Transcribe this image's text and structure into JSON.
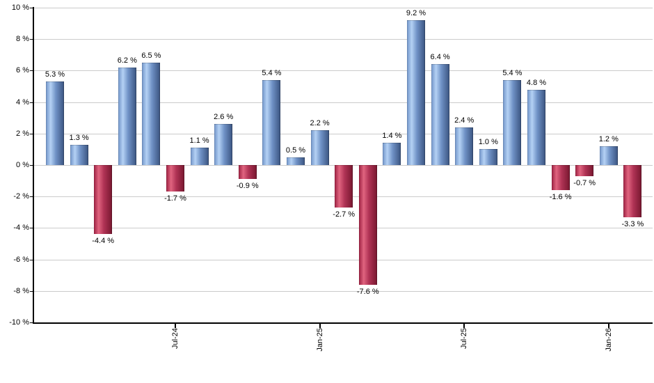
{
  "chart_data": {
    "type": "bar",
    "title": "",
    "xlabel": "",
    "ylabel": "",
    "grid": true,
    "legend_position": "none",
    "ylim": [
      -10,
      10
    ],
    "y_ticks": [
      {
        "value": 10,
        "label": "10 %"
      },
      {
        "value": 8,
        "label": "8 %"
      },
      {
        "value": 6,
        "label": "6 %"
      },
      {
        "value": 4,
        "label": "4 %"
      },
      {
        "value": 2,
        "label": "2 %"
      },
      {
        "value": 0,
        "label": "0 %"
      },
      {
        "value": -2,
        "label": "-2 %"
      },
      {
        "value": -4,
        "label": "-4 %"
      },
      {
        "value": -6,
        "label": "-6 %"
      },
      {
        "value": -8,
        "label": "-8 %"
      },
      {
        "value": -10,
        "label": "-10 %"
      }
    ],
    "values": [
      5.3,
      1.3,
      -4.4,
      6.2,
      6.5,
      -1.7,
      1.1,
      2.6,
      -0.9,
      5.4,
      0.5,
      2.2,
      -2.7,
      -7.6,
      1.4,
      9.2,
      6.4,
      2.4,
      1.0,
      5.4,
      4.8,
      -1.6,
      -0.7,
      1.2,
      -3.3
    ],
    "value_labels": [
      "5.3 %",
      "1.3 %",
      "-4.4 %",
      "6.2 %",
      "6.5 %",
      "-1.7 %",
      "1.1 %",
      "2.6 %",
      "-0.9 %",
      "5.4 %",
      "0.5 %",
      "2.2 %",
      "-2.7 %",
      "-7.6 %",
      "1.4 %",
      "9.2 %",
      "6.4 %",
      "2.4 %",
      "1.0 %",
      "5.4 %",
      "4.8 %",
      "-1.6 %",
      "-0.7 %",
      "1.2 %",
      "-3.3 %"
    ],
    "x_tick_marks": [
      {
        "bar_index": 5,
        "label": "Jul-24"
      },
      {
        "bar_index": 11,
        "label": "Jan-25"
      },
      {
        "bar_index": 17,
        "label": "Jul-25"
      },
      {
        "bar_index": 23,
        "label": "Jan-26"
      }
    ],
    "colors": {
      "positive_bar_gradient": [
        "#7295c9",
        "#b4d1f4",
        "#7092c6",
        "#3a5480"
      ],
      "negative_bar_gradient": [
        "#9e2243",
        "#e0647f",
        "#b03355",
        "#77172f"
      ],
      "gridline": "#cbcbcb",
      "axis": "#000000",
      "label_text": "#000000",
      "background": "#ffffff"
    }
  }
}
